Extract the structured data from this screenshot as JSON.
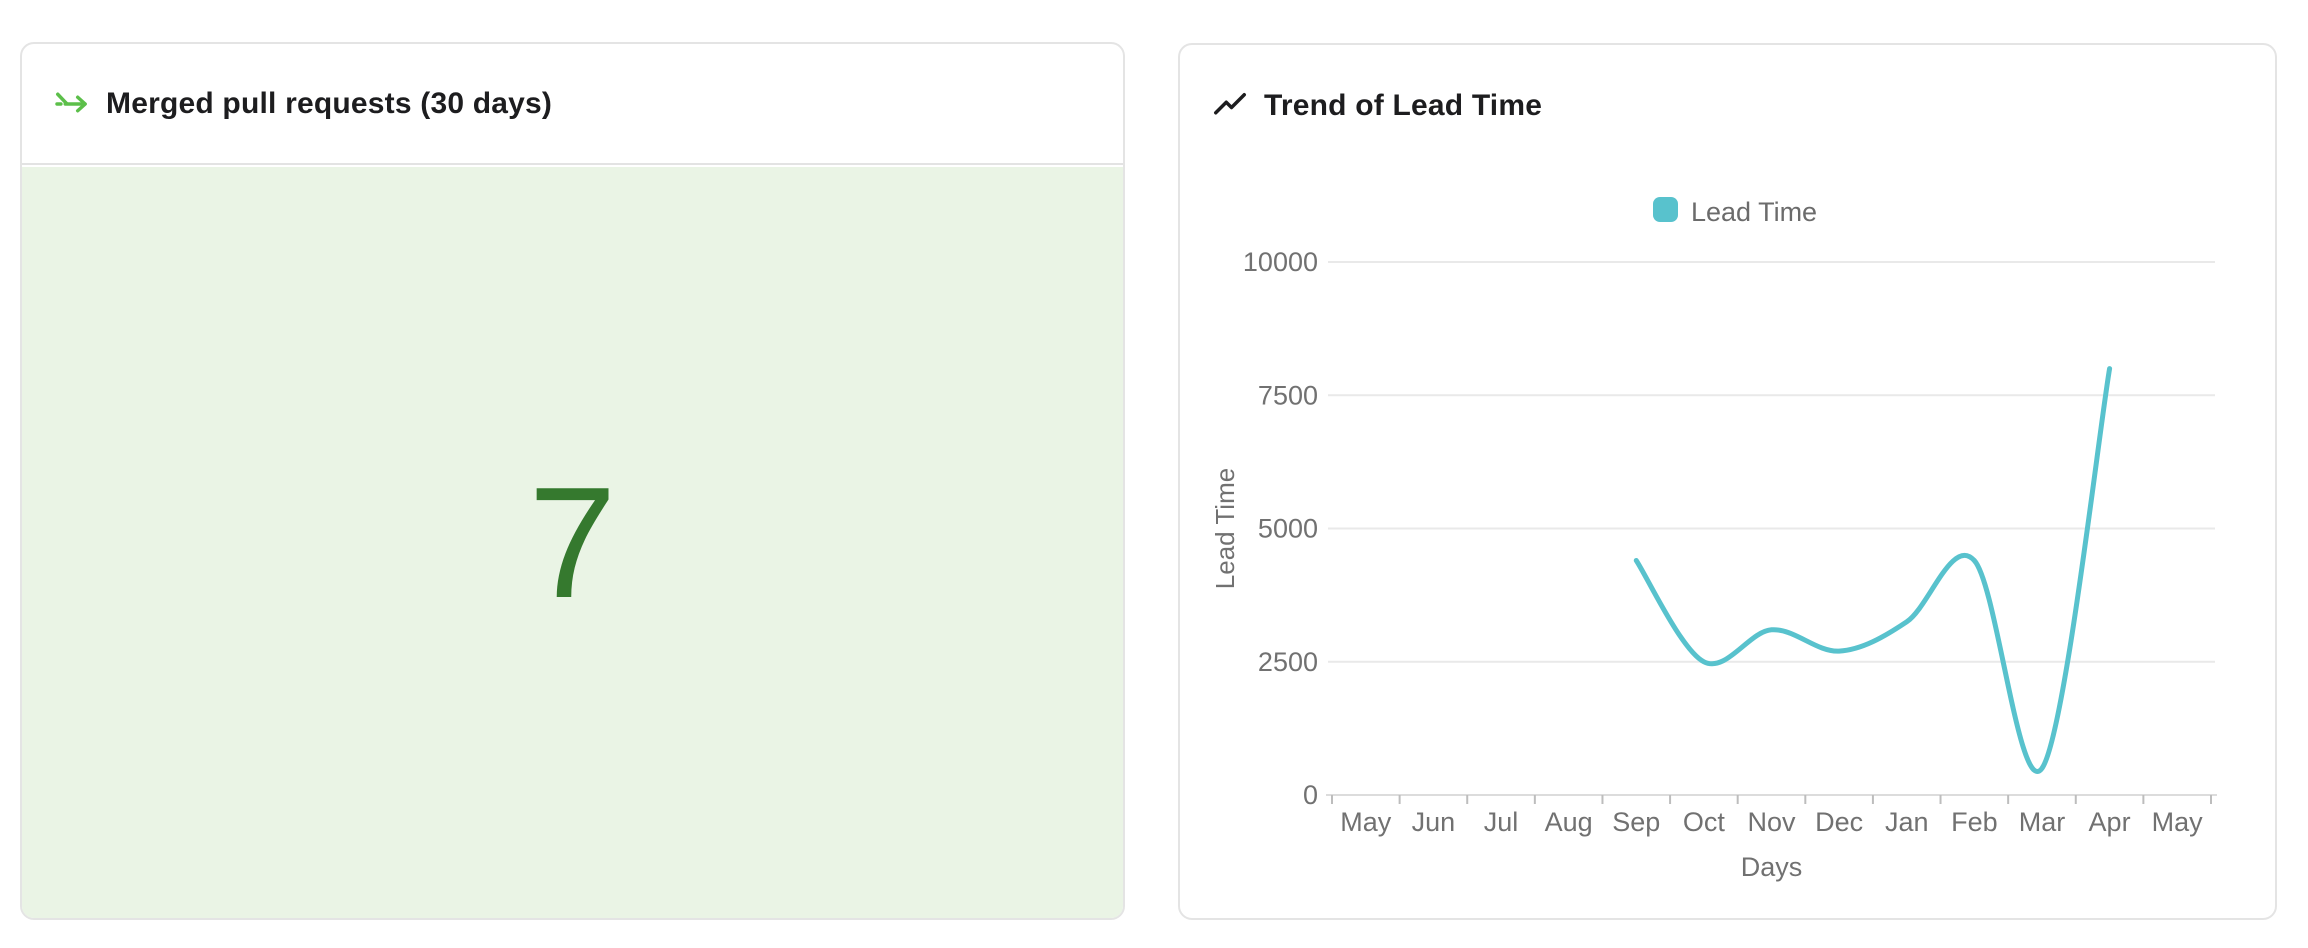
{
  "page": {
    "background": "#ffffff"
  },
  "cards": {
    "merged_prs": {
      "title": "Merged pull requests (30 days)",
      "value": "7",
      "icon": "merge-arrow-icon",
      "icon_color": "#5cbf4a",
      "value_color": "#35792e",
      "body_background": "#eaf4e5",
      "divider_color": "#e3e3e3"
    },
    "lead_time": {
      "title": "Trend of Lead Time",
      "icon": "trend-up-icon",
      "icon_color": "#1d1d1f"
    }
  },
  "chart_data": {
    "type": "line",
    "title": "Trend of Lead Time",
    "legend": [
      {
        "label": "Lead Time",
        "color": "#58c2cd"
      }
    ],
    "legend_position": "top-center",
    "xlabel": "Days",
    "ylabel": "Lead Time",
    "categories": [
      "May",
      "Jun",
      "Jul",
      "Aug",
      "Sep",
      "Oct",
      "Nov",
      "Dec",
      "Jan",
      "Feb",
      "Mar",
      "Apr",
      "May"
    ],
    "series": [
      {
        "name": "Lead Time",
        "color": "#58c2cd",
        "smooth": true,
        "values": [
          null,
          null,
          null,
          null,
          4400,
          2500,
          3100,
          2700,
          3250,
          4400,
          500,
          8000,
          null
        ]
      }
    ],
    "ylim": [
      0,
      10000
    ],
    "yticks": [
      0,
      2500,
      5000,
      7500,
      10000
    ],
    "grid": "horizontal",
    "axis_text_color": "#717171",
    "gridline_color": "#e9e9e9",
    "axis_line_color": "#dcdcdc",
    "tick_color": "#bdbdbd"
  }
}
